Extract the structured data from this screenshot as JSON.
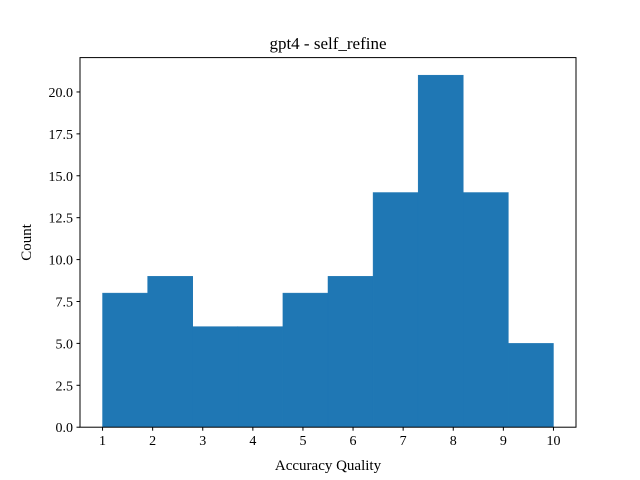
{
  "chart_data": {
    "type": "bar",
    "title": "gpt4 - self_refine",
    "xlabel": "Accuracy Quality",
    "ylabel": "Count",
    "bins": [
      {
        "x0": 1.0,
        "x1": 1.9,
        "count": 8
      },
      {
        "x0": 1.9,
        "x1": 2.8,
        "count": 9
      },
      {
        "x0": 2.8,
        "x1": 3.7,
        "count": 6
      },
      {
        "x0": 3.7,
        "x1": 4.6,
        "count": 6
      },
      {
        "x0": 4.6,
        "x1": 5.5,
        "count": 8
      },
      {
        "x0": 5.5,
        "x1": 6.4,
        "count": 9
      },
      {
        "x0": 6.4,
        "x1": 7.3,
        "count": 14
      },
      {
        "x0": 7.3,
        "x1": 8.2,
        "count": 21
      },
      {
        "x0": 8.2,
        "x1": 9.1,
        "count": 14
      },
      {
        "x0": 9.1,
        "x1": 10.0,
        "count": 5
      }
    ],
    "xlim": [
      0.55,
      10.45
    ],
    "ylim": [
      0,
      22.05
    ],
    "xticks": [
      "1",
      "2",
      "3",
      "4",
      "5",
      "6",
      "7",
      "8",
      "9",
      "10"
    ],
    "yticks": [
      "0.0",
      "2.5",
      "5.0",
      "7.5",
      "10.0",
      "12.5",
      "15.0",
      "17.5",
      "20.0"
    ],
    "bar_color": "#1f77b4",
    "grid": false,
    "legend": "none"
  }
}
